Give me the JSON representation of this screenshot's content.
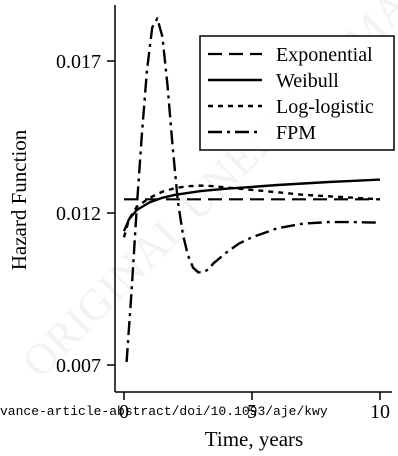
{
  "chart_data": {
    "type": "line",
    "title": "",
    "xlabel": "Time, years",
    "ylabel": "Hazard Function",
    "xlim": [
      0,
      10
    ],
    "ylim": [
      0.007,
      0.0185
    ],
    "x_ticks": [
      0,
      5,
      10
    ],
    "x_tick_labels": [
      "0",
      "5",
      "10"
    ],
    "y_ticks": [
      0.007,
      0.012,
      0.017
    ],
    "y_tick_labels": [
      "0.007",
      "0.012",
      "0.017"
    ],
    "grid": false,
    "legend_position": "top-right",
    "series": [
      {
        "name": "Exponential",
        "line_style": "dashed",
        "x": [
          0,
          10
        ],
        "y": [
          0.01245,
          0.01245
        ]
      },
      {
        "name": "Weibull",
        "line_style": "solid",
        "x": [
          0,
          0.2,
          0.5,
          1.0,
          1.5,
          2.0,
          3.0,
          4.0,
          5.0,
          6.0,
          7.0,
          8.0,
          9.0,
          10.0
        ],
        "y": [
          0.0114,
          0.0118,
          0.0121,
          0.01235,
          0.0125,
          0.0126,
          0.01272,
          0.0128,
          0.01286,
          0.01292,
          0.01297,
          0.01302,
          0.01306,
          0.0131
        ]
      },
      {
        "name": "Log-logistic",
        "line_style": "dotted",
        "x": [
          0,
          0.2,
          0.5,
          1.0,
          1.5,
          2.0,
          2.5,
          3.0,
          3.5,
          4.0,
          5.0,
          6.0,
          7.0,
          8.0,
          9.0,
          10.0
        ],
        "y": [
          0.0112,
          0.0118,
          0.0122,
          0.0125,
          0.0127,
          0.01282,
          0.01288,
          0.0129,
          0.01288,
          0.01284,
          0.01276,
          0.01268,
          0.0126,
          0.01255,
          0.0125,
          0.01245
        ]
      },
      {
        "name": "FPM",
        "line_style": "dash-dot",
        "x": [
          0.1,
          0.3,
          0.5,
          0.7,
          0.9,
          1.1,
          1.3,
          1.5,
          1.7,
          1.9,
          2.1,
          2.3,
          2.5,
          2.7,
          2.9,
          3.1,
          3.3,
          3.5,
          4.0,
          4.5,
          5.0,
          6.0,
          7.0,
          8.0,
          9.0,
          10.0
        ],
        "y": [
          0.0071,
          0.0095,
          0.0122,
          0.0146,
          0.0167,
          0.0181,
          0.0184,
          0.0178,
          0.0162,
          0.0142,
          0.0124,
          0.0113,
          0.0106,
          0.0102,
          0.01005,
          0.01005,
          0.01015,
          0.01035,
          0.0107,
          0.011,
          0.0112,
          0.0115,
          0.01165,
          0.0117,
          0.0117,
          0.01168
        ]
      }
    ]
  },
  "watermark": {
    "diagonal_text": "ORIGINAL UNEDITED MANUSCRIPT",
    "side_url": "vance-article-abstract/doi/10.1093/aje/kwy"
  }
}
